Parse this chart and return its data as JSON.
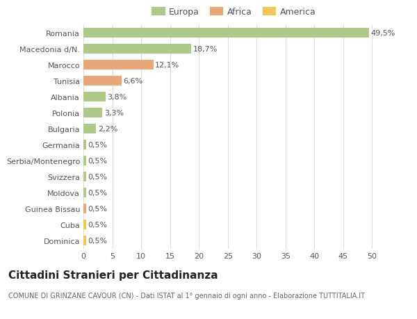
{
  "categories": [
    "Romania",
    "Macedonia d/N.",
    "Marocco",
    "Tunisia",
    "Albania",
    "Polonia",
    "Bulgaria",
    "Germania",
    "Serbia/Montenegro",
    "Svizzera",
    "Moldova",
    "Guinea Bissau",
    "Cuba",
    "Dominica"
  ],
  "values": [
    49.5,
    18.7,
    12.1,
    6.6,
    3.8,
    3.3,
    2.2,
    0.5,
    0.5,
    0.5,
    0.5,
    0.5,
    0.5,
    0.5
  ],
  "labels": [
    "49,5%",
    "18,7%",
    "12,1%",
    "6,6%",
    "3,8%",
    "3,3%",
    "2,2%",
    "0,5%",
    "0,5%",
    "0,5%",
    "0,5%",
    "0,5%",
    "0,5%",
    "0,5%"
  ],
  "colors": [
    "#aec98a",
    "#aec98a",
    "#e8a87c",
    "#e8a87c",
    "#aec98a",
    "#aec98a",
    "#aec98a",
    "#aec98a",
    "#aec98a",
    "#aec98a",
    "#aec98a",
    "#e8a87c",
    "#f0c755",
    "#f0c755"
  ],
  "legend_labels": [
    "Europa",
    "Africa",
    "America"
  ],
  "legend_colors": [
    "#aec98a",
    "#e8a87c",
    "#f0c755"
  ],
  "title": "Cittadini Stranieri per Cittadinanza",
  "subtitle": "COMUNE DI GRINZANE CAVOUR (CN) - Dati ISTAT al 1° gennaio di ogni anno - Elaborazione TUTTITALIA.IT",
  "xlim": [
    0,
    52
  ],
  "xticks": [
    0,
    5,
    10,
    15,
    20,
    25,
    30,
    35,
    40,
    45,
    50
  ],
  "bg_color": "#ffffff",
  "grid_color": "#dddddd",
  "bar_height": 0.6,
  "title_fontsize": 11,
  "subtitle_fontsize": 7,
  "label_fontsize": 8,
  "tick_fontsize": 8,
  "legend_fontsize": 9
}
